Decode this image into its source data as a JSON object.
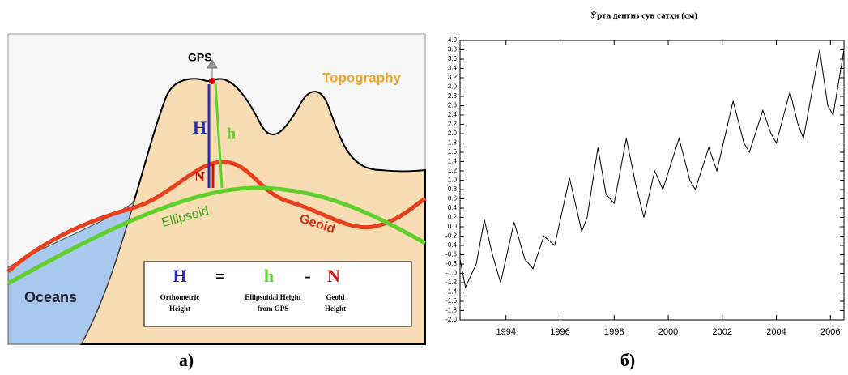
{
  "diagram": {
    "gps": "GPS",
    "topography": "Topography",
    "H": "H",
    "h": "h",
    "N": "N",
    "ellipsoid": "Ellipsoid",
    "geoid": "Geoid",
    "oceans": "Oceans",
    "formula": {
      "H": "H",
      "equals": "=",
      "h": "h",
      "minus": "-",
      "N": "N",
      "H_desc": [
        "Orthometric",
        "Height"
      ],
      "h_desc": [
        "Ellipsoidal Height",
        "from GPS"
      ],
      "N_desc": [
        "Geoid",
        "Height"
      ]
    }
  },
  "captions": [
    "а)",
    "б)"
  ],
  "chart_data": {
    "type": "line",
    "title": "Ўрта денгиз сув сатҳи (см)",
    "x": [
      1992.3,
      1992.5,
      1992.9,
      1993.2,
      1993.5,
      1993.8,
      1994.3,
      1994.7,
      1995.0,
      1995.4,
      1995.8,
      1996.35,
      1996.8,
      1997.0,
      1997.4,
      1997.7,
      1998.0,
      1998.45,
      1998.8,
      1999.1,
      1999.5,
      1999.8,
      2000.4,
      2000.8,
      2001.0,
      2001.5,
      2001.8,
      2002.4,
      2002.8,
      2003.0,
      2003.5,
      2003.8,
      2004.0,
      2004.5,
      2004.8,
      2005.0,
      2005.6,
      2005.9,
      2006.1,
      2006.5
    ],
    "series": [
      {
        "color": "#000000",
        "values": [
          -0.7,
          -1.3,
          -0.8,
          0.15,
          -0.6,
          -1.2,
          0.1,
          -0.7,
          -0.9,
          -0.2,
          -0.4,
          1.05,
          -0.1,
          0.2,
          1.7,
          0.7,
          0.5,
          1.9,
          0.9,
          0.2,
          1.2,
          0.8,
          1.9,
          1.0,
          0.8,
          1.7,
          1.2,
          2.7,
          1.8,
          1.6,
          2.5,
          2.0,
          1.8,
          2.9,
          2.2,
          1.9,
          3.8,
          2.6,
          2.4,
          3.8
        ]
      }
    ],
    "xlim": [
      1992.3,
      2006.5
    ],
    "xticks": [
      1994,
      1996,
      1998,
      2000,
      2002,
      2004,
      2006
    ],
    "ylim": [
      -2,
      4
    ],
    "yticks": [
      {
        "value": -2,
        "label": "-2.0"
      },
      -1.8,
      -1.6,
      -1.4,
      -1.2,
      {
        "value": -1,
        "label": "-1.0"
      },
      -0.8,
      -0.6,
      -0.4,
      -0.2,
      {
        "value": 0,
        "label": "0.0"
      },
      0.2,
      0.4,
      0.6,
      0.8,
      {
        "value": 1,
        "label": "1.0"
      },
      1.2,
      1.4,
      1.6,
      1.8,
      {
        "value": 2,
        "label": "2.0"
      },
      2.2,
      2.4,
      2.6,
      2.8,
      {
        "value": 3,
        "label": "3.0"
      },
      3.2,
      3.4,
      3.6,
      3.8,
      {
        "value": 4,
        "label": "4.0"
      }
    ]
  }
}
